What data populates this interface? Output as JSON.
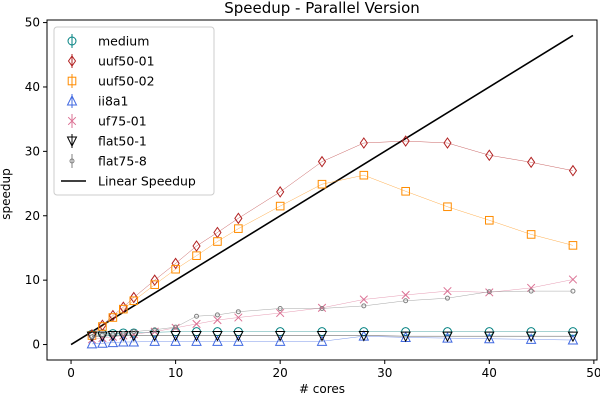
{
  "chart_data": {
    "type": "line",
    "title": "Speedup - Parallel Version",
    "xlabel": "# cores",
    "ylabel": "speedup",
    "xlim": [
      -2.3,
      50.3
    ],
    "ylim": [
      -2.4,
      50.4
    ],
    "xticks": [
      0,
      10,
      20,
      30,
      40,
      50
    ],
    "yticks": [
      0,
      10,
      20,
      30,
      40,
      50
    ],
    "grid": false,
    "legend_position": "top-left",
    "x": [
      2,
      3,
      4,
      5,
      6,
      8,
      10,
      12,
      14,
      16,
      20,
      24,
      28,
      32,
      36,
      40,
      44,
      48
    ],
    "series": [
      {
        "name": "medium",
        "color": "#008080",
        "marker": "circle",
        "values": [
          1.6,
          1.7,
          1.7,
          1.8,
          1.8,
          1.9,
          2.0,
          2.0,
          2.0,
          2.0,
          2.0,
          2.0,
          2.0,
          2.0,
          2.0,
          2.0,
          2.0,
          2.0
        ]
      },
      {
        "name": "uuf50-01",
        "color": "#b22222",
        "marker": "thin-diamond",
        "values": [
          1.5,
          3.0,
          4.5,
          5.8,
          7.3,
          10.0,
          12.6,
          15.3,
          17.4,
          19.6,
          23.7,
          28.4,
          31.3,
          31.6,
          31.3,
          29.4,
          28.3,
          27.0
        ]
      },
      {
        "name": "uuf50-02",
        "color": "#ff8c00",
        "marker": "square",
        "values": [
          1.4,
          2.8,
          4.2,
          5.5,
          6.8,
          9.3,
          11.7,
          13.8,
          16.0,
          18.0,
          21.5,
          24.9,
          26.3,
          23.8,
          21.4,
          19.3,
          17.1,
          15.4
        ]
      },
      {
        "name": "ii8a1",
        "color": "#4169e1",
        "marker": "triangle-up",
        "values": [
          0.1,
          0.2,
          0.3,
          0.4,
          0.4,
          0.5,
          0.5,
          0.5,
          0.5,
          0.5,
          0.5,
          0.5,
          1.3,
          1.1,
          1.0,
          0.9,
          0.8,
          0.7
        ]
      },
      {
        "name": "uf75-01",
        "color": "#db7093",
        "marker": "x",
        "values": [
          0.8,
          1.0,
          1.2,
          1.4,
          1.6,
          2.0,
          2.6,
          3.2,
          3.8,
          4.2,
          4.9,
          5.7,
          7.0,
          7.7,
          8.3,
          8.1,
          8.8,
          10.1
        ]
      },
      {
        "name": "flat50-1",
        "color": "#000000",
        "marker": "triangle-down",
        "values": [
          1.3,
          1.3,
          1.4,
          1.4,
          1.4,
          1.4,
          1.4,
          1.4,
          1.4,
          1.4,
          1.4,
          1.4,
          1.4,
          1.3,
          1.3,
          1.3,
          1.3,
          1.3
        ]
      },
      {
        "name": "flat75-8",
        "color": "#808080",
        "marker": "point",
        "values": [
          1.2,
          1.5,
          1.6,
          1.7,
          2.0,
          2.3,
          2.7,
          4.4,
          4.6,
          5.1,
          5.6,
          5.6,
          6.0,
          6.8,
          7.2,
          8.2,
          8.3,
          8.3
        ]
      }
    ],
    "reference_line": {
      "name": "Linear Speedup",
      "color": "#000000",
      "x": [
        0,
        48
      ],
      "y": [
        0,
        48
      ]
    }
  }
}
